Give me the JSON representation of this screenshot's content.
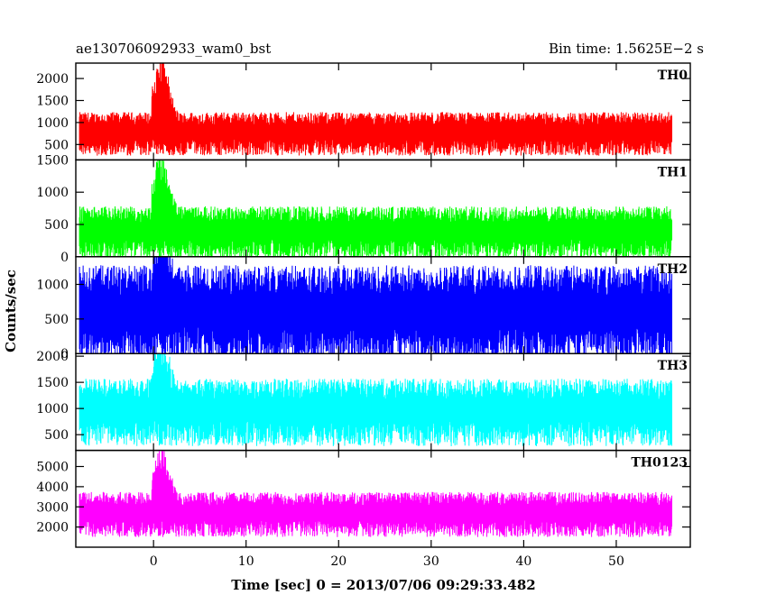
{
  "header": {
    "title": "ae130706092933_wam0_bst",
    "bin_time": "Bin time: 1.5625E−2 s"
  },
  "chart_data": {
    "type": "line",
    "title": "ae130706092933_wam0_bst",
    "subtitle": "Bin time: 1.5625E−2 s",
    "xlabel": "Time [sec] 0 = 2013/07/06 09:29:33.482",
    "ylabel": "Counts/sec",
    "xlim": [
      -8.4,
      58.0
    ],
    "x_ticks": [
      0,
      10,
      20,
      30,
      40,
      50
    ],
    "data_x_range": [
      -8.0,
      56.0
    ],
    "grid": false,
    "series": [
      {
        "name": "TH0",
        "color": "#ff0000",
        "ylim": [
          150,
          2350
        ],
        "y_ticks": [
          500,
          1000,
          1500,
          2000
        ],
        "baseline": 800,
        "spread": 230,
        "peak_at_start": 2350
      },
      {
        "name": "TH1",
        "color": "#00ff00",
        "ylim": [
          0,
          1500
        ],
        "y_ticks": [
          0,
          500,
          1000,
          1500
        ],
        "baseline": 420,
        "spread": 190,
        "peak_at_start": 1500
      },
      {
        "name": "TH2",
        "color": "#0000ff",
        "ylim": [
          0,
          1400
        ],
        "y_ticks": [
          0,
          500,
          1000
        ],
        "baseline": 650,
        "spread": 330,
        "peak_at_start": 1300
      },
      {
        "name": "TH3",
        "color": "#00ffff",
        "ylim": [
          200,
          2050
        ],
        "y_ticks": [
          500,
          1000,
          1500,
          2000
        ],
        "baseline": 1000,
        "spread": 300,
        "peak_at_start": 2000
      },
      {
        "name": "TH0123",
        "color": "#ff00ff",
        "ylim": [
          1000,
          5800
        ],
        "y_ticks": [
          2000,
          3000,
          4000,
          5000
        ],
        "baseline": 2750,
        "spread": 520,
        "peak_at_start": 5800
      }
    ]
  }
}
